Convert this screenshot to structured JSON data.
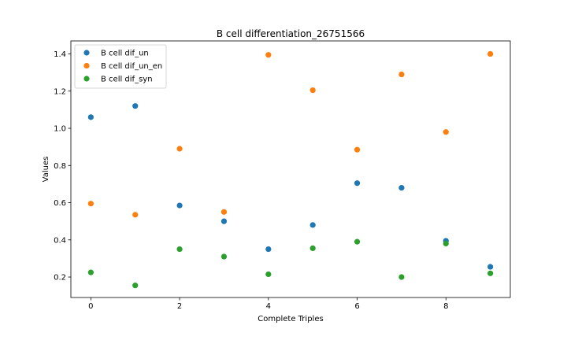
{
  "chart_data": {
    "type": "scatter",
    "title": "B cell differentiation_26751566",
    "xlabel": "Complete Triples",
    "ylabel": "Values",
    "x": [
      0,
      1,
      2,
      3,
      4,
      5,
      6,
      7,
      8,
      9
    ],
    "xlim": [
      -0.45,
      9.45
    ],
    "ylim": [
      0.09,
      1.47
    ],
    "xticks": [
      0,
      2,
      4,
      6,
      8
    ],
    "yticks": [
      0.2,
      0.4,
      0.6,
      0.8,
      1.0,
      1.2,
      1.4
    ],
    "ytick_labels": [
      "0.2",
      "0.4",
      "0.6",
      "0.8",
      "1.0",
      "1.2",
      "1.4"
    ],
    "legend_position": "top-left",
    "grid": false,
    "series": [
      {
        "name": "B cell dif_un",
        "color": "#1f77b4",
        "values": [
          1.06,
          1.12,
          0.585,
          0.5,
          0.35,
          0.48,
          0.705,
          0.68,
          0.395,
          0.255
        ]
      },
      {
        "name": "B cell dif_un_en",
        "color": "#ff7f0e",
        "values": [
          0.595,
          0.535,
          0.89,
          0.55,
          1.395,
          1.205,
          0.885,
          1.29,
          0.98,
          1.4
        ]
      },
      {
        "name": "B cell dif_syn",
        "color": "#2ca02c",
        "values": [
          0.225,
          0.155,
          0.35,
          0.31,
          0.215,
          0.355,
          0.39,
          0.2,
          0.38,
          0.22
        ]
      }
    ]
  }
}
